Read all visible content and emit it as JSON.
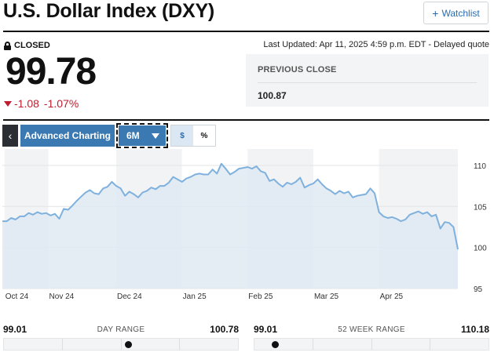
{
  "header": {
    "title": "U.S. Dollar Index (DXY)",
    "watchlist_label": "Watchlist"
  },
  "quote": {
    "status": "CLOSED",
    "price": "99.78",
    "change": "-1.08",
    "change_pct": "-1.07%",
    "updated": "Last Updated: Apr 11, 2025 4:59 p.m. EDT  -  Delayed quote",
    "previous_close_label": "PREVIOUS CLOSE",
    "previous_close": "100.87",
    "down_color": "#c11b2e"
  },
  "toolbar": {
    "back_label": "‹",
    "advanced_label": "Advanced Charting",
    "period_label": "6M",
    "toggle_dollar": "$",
    "toggle_percent": "%",
    "accent": "#3a79b1"
  },
  "chart_data": {
    "type": "area",
    "title": "",
    "xlabel": "",
    "ylabel": "",
    "ylim": [
      95,
      112
    ],
    "yticks": [
      95,
      100,
      105,
      110
    ],
    "x_tick_labels": [
      "Oct 24",
      "Nov 24",
      "Dec 24",
      "Jan 25",
      "Feb 25",
      "Mar 25",
      "Apr 25"
    ],
    "x_tick_positions": [
      0.5,
      10.5,
      26,
      41,
      56,
      71,
      86
    ],
    "grid": true,
    "line_color": "#7fb1de",
    "fill_color": "#dfe9f2",
    "series": [
      {
        "values": [
          103.2,
          103.2,
          103.6,
          103.4,
          103.8,
          103.8,
          104.2,
          104.0,
          104.3,
          104.1,
          104.2,
          103.9,
          104.1,
          103.5,
          104.7,
          104.6,
          105.1,
          105.7,
          106.2,
          106.7,
          107.0,
          106.6,
          106.5,
          107.2,
          107.4,
          108.0,
          107.5,
          107.2,
          106.3,
          106.8,
          106.5,
          106.1,
          106.7,
          106.9,
          107.3,
          107.1,
          107.5,
          107.5,
          107.9,
          108.6,
          108.3,
          108.0,
          108.4,
          108.6,
          108.9,
          109.0,
          108.9,
          108.9,
          109.5,
          109.0,
          110.2,
          109.6,
          108.9,
          109.2,
          109.6,
          109.7,
          109.8,
          109.6,
          109.9,
          109.3,
          109.1,
          108.1,
          108.3,
          107.8,
          107.4,
          107.9,
          107.7,
          108.0,
          108.5,
          107.3,
          107.6,
          107.8,
          108.3,
          107.7,
          107.2,
          106.9,
          106.5,
          106.9,
          106.6,
          106.8,
          106.1,
          106.3,
          106.4,
          106.5,
          107.2,
          106.6,
          104.3,
          103.8,
          103.6,
          103.7,
          103.5,
          103.2,
          103.4,
          104.0,
          104.2,
          104.4,
          104.1,
          104.3,
          103.8,
          104.0,
          102.3,
          103.1,
          103.0,
          102.5,
          99.78
        ]
      }
    ]
  },
  "ranges": {
    "day": {
      "low": "99.01",
      "label": "DAY RANGE",
      "high": "100.78",
      "position": 0.53
    },
    "week52": {
      "low": "99.01",
      "label": "52 WEEK RANGE",
      "high": "110.18",
      "position": 0.09
    }
  }
}
